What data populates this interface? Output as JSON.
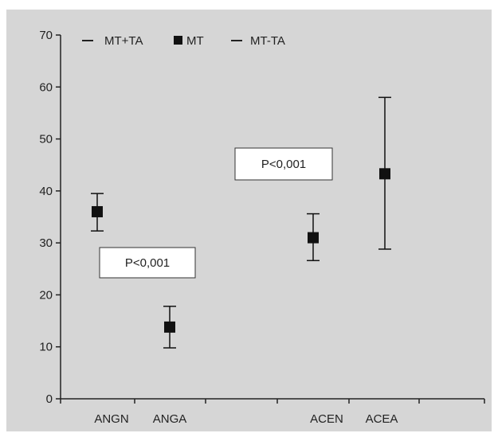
{
  "chart_data": {
    "type": "scatter",
    "title": "",
    "xlabel": "",
    "ylabel": "",
    "ylim": [
      0,
      70
    ],
    "yticks": [
      0,
      10,
      20,
      30,
      40,
      50,
      60,
      70
    ],
    "categories": [
      "ANGN",
      "ANGA",
      "ACEN",
      "ACEA"
    ],
    "legend": {
      "position": "top-left",
      "items": [
        {
          "symbol": "—",
          "label": "MT+TA"
        },
        {
          "symbol": "■",
          "label": "MT"
        },
        {
          "symbol": "—",
          "label": "MT-TA"
        }
      ]
    },
    "series": [
      {
        "name": "MT",
        "values": [
          36,
          13.8,
          31,
          43.3
        ],
        "upper": [
          39.5,
          17.8,
          35.6,
          58
        ],
        "lower": [
          32.3,
          9.8,
          26.6,
          28.8
        ]
      }
    ],
    "annotations": [
      {
        "text": "P<0,001",
        "between": [
          "ANGN",
          "ANGA"
        ]
      },
      {
        "text": "P<0,001",
        "between": [
          "ACEN",
          "ACEA"
        ]
      }
    ],
    "colors": {
      "background": "#d6d6d6",
      "marker": "#111111",
      "axis": "#222222",
      "box": "#ffffff"
    }
  }
}
